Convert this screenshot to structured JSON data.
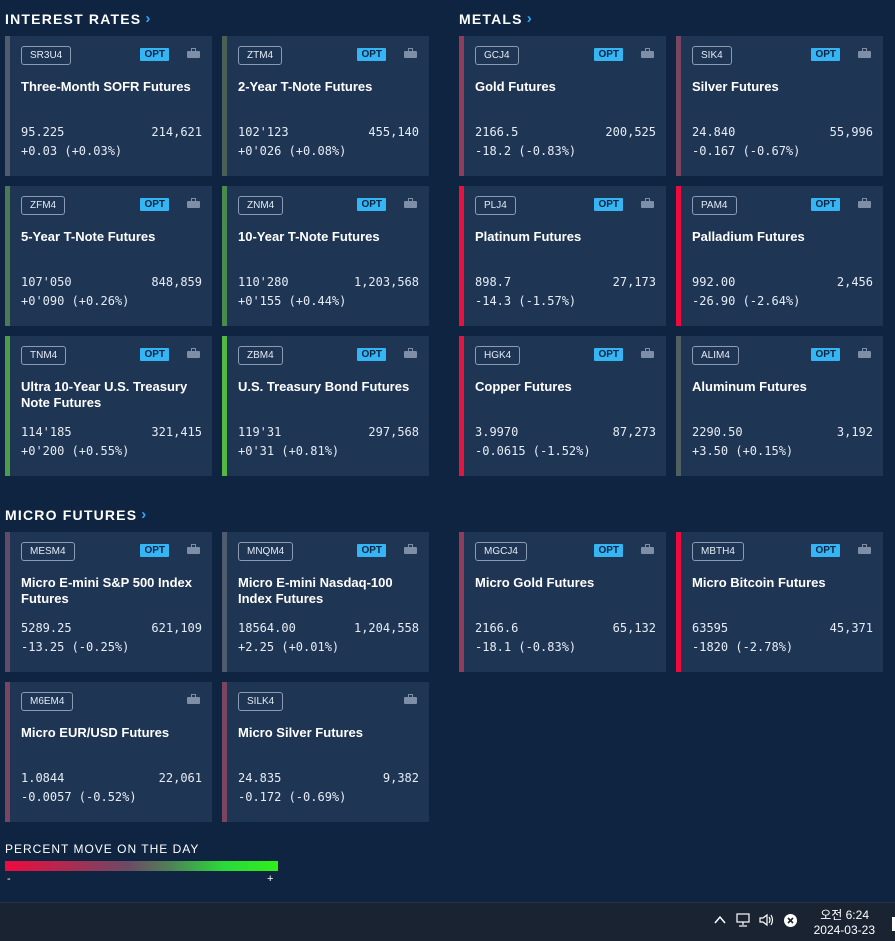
{
  "sections": {
    "interest_rates": "INTEREST RATES",
    "metals": "METALS",
    "micro_futures": "MICRO FUTURES",
    "chevron": "›"
  },
  "cards": [
    {
      "symbol": "SR3U4",
      "opt": "OPT",
      "name": "Three-Month SOFR Futures",
      "price": "95.225",
      "volume": "214,621",
      "change": "+0.03 (+0.03%)",
      "bar_color": "#4f5c6e"
    },
    {
      "symbol": "ZTM4",
      "opt": "OPT",
      "name": "2-Year T-Note Futures",
      "price": "102'123",
      "volume": "455,140",
      "change": "+0'026 (+0.08%)",
      "bar_color": "#4a5f55"
    },
    {
      "symbol": "GCJ4",
      "opt": "OPT",
      "name": "Gold Futures",
      "price": "2166.5",
      "volume": "200,525",
      "change": "-18.2 (-0.83%)",
      "bar_color": "#8e3e5a"
    },
    {
      "symbol": "SIK4",
      "opt": "OPT",
      "name": "Silver Futures",
      "price": "24.840",
      "volume": "55,996",
      "change": "-0.167 (-0.67%)",
      "bar_color": "#7a4560"
    },
    {
      "symbol": "ZFM4",
      "opt": "OPT",
      "name": "5-Year T-Note Futures",
      "price": "107'050",
      "volume": "848,859",
      "change": "+0'090 (+0.26%)",
      "bar_color": "#4b7a52"
    },
    {
      "symbol": "ZNM4",
      "opt": "OPT",
      "name": "10-Year T-Note Futures",
      "price": "110'280",
      "volume": "1,203,568",
      "change": "+0'155 (+0.44%)",
      "bar_color": "#4b8a4e"
    },
    {
      "symbol": "PLJ4",
      "opt": "OPT",
      "name": "Platinum Futures",
      "price": "898.7",
      "volume": "27,173",
      "change": "-14.3 (-1.57%)",
      "bar_color": "#e8123f"
    },
    {
      "symbol": "PAM4",
      "opt": "OPT",
      "name": "Palladium Futures",
      "price": "992.00",
      "volume": "2,456",
      "change": "-26.90 (-2.64%)",
      "bar_color": "#f0093c"
    },
    {
      "symbol": "TNM4",
      "opt": "OPT",
      "name": "Ultra 10-Year U.S. Treasury Note Futures",
      "price": "114'185",
      "volume": "321,415",
      "change": "+0'200 (+0.55%)",
      "bar_color": "#4d9c4a"
    },
    {
      "symbol": "ZBM4",
      "opt": "OPT",
      "name": "U.S. Treasury Bond Futures",
      "price": "119'31",
      "volume": "297,568",
      "change": "+0'31 (+0.81%)",
      "bar_color": "#55b845"
    },
    {
      "symbol": "HGK4",
      "opt": "OPT",
      "name": "Copper Futures",
      "price": "3.9970",
      "volume": "87,273",
      "change": "-0.0615 (-1.52%)",
      "bar_color": "#e3163f"
    },
    {
      "symbol": "ALIM4",
      "opt": "OPT",
      "name": "Aluminum Futures",
      "price": "2290.50",
      "volume": "3,192",
      "change": "+3.50 (+0.15%)",
      "bar_color": "#4f5f62"
    },
    {
      "symbol": "MESM4",
      "opt": "OPT",
      "name": "Micro E-mini S&P 500 Index Futures",
      "price": "5289.25",
      "volume": "621,109",
      "change": "-13.25 (-0.25%)",
      "bar_color": "#5e4c68"
    },
    {
      "symbol": "MNQM4",
      "opt": "OPT",
      "name": "Micro E-mini Nasdaq-100 Index Futures",
      "price": "18564.00",
      "volume": "1,204,558",
      "change": "+2.25 (+0.01%)",
      "bar_color": "#4f5c6e"
    },
    {
      "symbol": "MGCJ4",
      "opt": "OPT",
      "name": "Micro Gold Futures",
      "price": "2166.6",
      "volume": "65,132",
      "change": "-18.1 (-0.83%)",
      "bar_color": "#8e3e5a"
    },
    {
      "symbol": "MBTH4",
      "opt": "OPT",
      "name": "Micro Bitcoin Futures",
      "price": "63595",
      "volume": "45,371",
      "change": "-1820 (-2.78%)",
      "bar_color": "#f0093c"
    },
    {
      "symbol": "M6EM4",
      "opt": "",
      "name": "Micro EUR/USD Futures",
      "price": "1.0844",
      "volume": "22,061",
      "change": "-0.0057 (-0.52%)",
      "bar_color": "#7a4560"
    },
    {
      "symbol": "SILK4",
      "opt": "",
      "name": "Micro Silver Futures",
      "price": "24.835",
      "volume": "9,382",
      "change": "-0.172 (-0.69%)",
      "bar_color": "#7a4560"
    }
  ],
  "legend": {
    "label": "PERCENT MOVE ON THE DAY",
    "minus": "-",
    "plus": "+"
  },
  "taskbar": {
    "time": "오전 6:24",
    "date": "2024-03-23",
    "chevron_icon": "chevron-up-icon",
    "network_icon": "network-icon",
    "volume_icon": "volume-icon",
    "mute_icon": "close-circle-icon"
  },
  "colors": {
    "background": "#0e2441",
    "card": "#1f3554",
    "accent": "#35b5f3",
    "negative": "#ee0b3e",
    "positive": "#2fef1c"
  }
}
